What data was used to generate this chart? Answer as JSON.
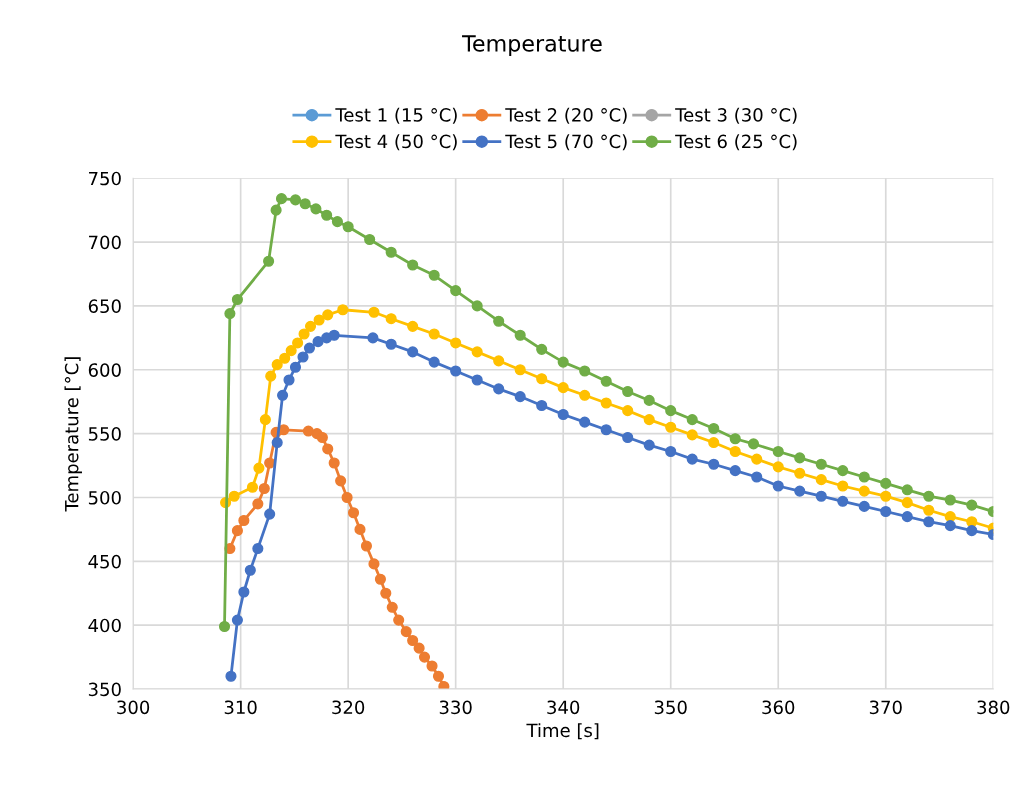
{
  "chart_data": {
    "type": "line",
    "title": "Temperature",
    "xlabel": "Time [s]",
    "ylabel": "Temperature [°C]",
    "xlim": [
      300,
      380
    ],
    "xticks": [
      300,
      310,
      320,
      330,
      340,
      350,
      360,
      370,
      380
    ],
    "ylim": [
      350,
      750
    ],
    "yticks": [
      350,
      400,
      450,
      500,
      550,
      600,
      650,
      700,
      750
    ],
    "grid": true,
    "legend": "top",
    "marker": "circle",
    "line_style": "solid",
    "series": [
      {
        "name": "Test 1 (15 °C)",
        "color": "#5b9bd5"
      },
      {
        "name": "Test 2 (20 °C)",
        "color": "#ed7d31",
        "x": [
          309.0,
          309.7,
          310.3,
          311.6,
          312.2,
          312.7,
          313.3,
          314.0,
          316.3,
          317.1,
          317.6,
          318.1,
          318.7,
          319.3,
          319.9,
          320.5,
          321.1,
          321.7,
          322.4,
          323.0,
          323.5,
          324.1,
          324.7,
          325.4,
          326.0,
          326.6,
          327.1,
          327.8,
          328.4,
          328.9
        ],
        "values": [
          460,
          474,
          482,
          495,
          507,
          527,
          551,
          553,
          552,
          550,
          547,
          538,
          527,
          513,
          500,
          488,
          475,
          462,
          448,
          436,
          425,
          414,
          404,
          395,
          388,
          382,
          375,
          368,
          360,
          352
        ]
      },
      {
        "name": "Test 3 (30 °C)",
        "color": "#a5a5a5"
      },
      {
        "name": "Test 4 (50 °C)",
        "color": "#ffc000",
        "x": [
          308.6,
          309.4,
          311.1,
          311.7,
          312.3,
          312.8,
          313.4,
          314.1,
          314.7,
          315.3,
          315.9,
          316.5,
          317.3,
          318.1,
          319.5,
          322.4,
          324,
          326,
          328,
          330,
          332,
          334,
          336,
          338,
          340,
          342,
          344,
          346,
          348,
          350,
          352,
          354,
          356,
          358,
          360,
          362,
          364,
          366,
          368,
          370,
          372,
          374,
          376,
          378,
          380
        ],
        "values": [
          496,
          501,
          508,
          523,
          561,
          595,
          604,
          609,
          615,
          621,
          628,
          634,
          639,
          643,
          647,
          645,
          640,
          634,
          628,
          621,
          614,
          607,
          600,
          593,
          586,
          580,
          574,
          568,
          561,
          555,
          549,
          543,
          536,
          530,
          524,
          519,
          514,
          509,
          505,
          501,
          496,
          490,
          485,
          481,
          476
        ]
      },
      {
        "name": "Test 5 (70 °C)",
        "color": "#4472c4",
        "x": [
          309.1,
          309.7,
          310.3,
          310.9,
          311.6,
          312.7,
          313.4,
          313.9,
          314.5,
          315.1,
          315.8,
          316.4,
          317.2,
          318.0,
          318.7,
          322.3,
          324,
          326,
          328,
          330,
          332,
          334,
          336,
          338,
          340,
          342,
          344,
          346,
          348,
          350,
          352,
          354,
          356,
          358,
          360,
          362,
          364,
          366,
          368,
          370,
          372,
          374,
          376,
          378,
          380
        ],
        "values": [
          360,
          404,
          426,
          443,
          460,
          487,
          543,
          580,
          592,
          602,
          610,
          617,
          622,
          625,
          627,
          625,
          620,
          614,
          606,
          599,
          592,
          585,
          579,
          572,
          565,
          559,
          553,
          547,
          541,
          536,
          530,
          526,
          521,
          516,
          509,
          505,
          501,
          497,
          493,
          489,
          485,
          481,
          478,
          474,
          471
        ]
      },
      {
        "name": "Test 6 (25 °C)",
        "color": "#70ad47",
        "x": [
          308.5,
          309.0,
          309.7,
          312.6,
          313.3,
          313.8,
          315.1,
          316,
          317,
          318,
          319,
          320,
          322,
          324,
          326,
          328,
          330,
          332,
          334,
          336,
          338,
          340,
          342,
          344,
          346,
          348,
          350,
          352,
          354,
          356,
          357.7,
          360,
          362,
          364,
          366,
          368,
          370,
          372,
          374,
          376,
          378,
          380
        ],
        "values": [
          399,
          644,
          655,
          685,
          725,
          734,
          733,
          730,
          726,
          721,
          716,
          712,
          702,
          692,
          682,
          674,
          662,
          650,
          638,
          627,
          616,
          606,
          599,
          591,
          583,
          576,
          568,
          561,
          554,
          546,
          542,
          536,
          531,
          526,
          521,
          516,
          511,
          506,
          501,
          498,
          494,
          489
        ]
      }
    ]
  }
}
